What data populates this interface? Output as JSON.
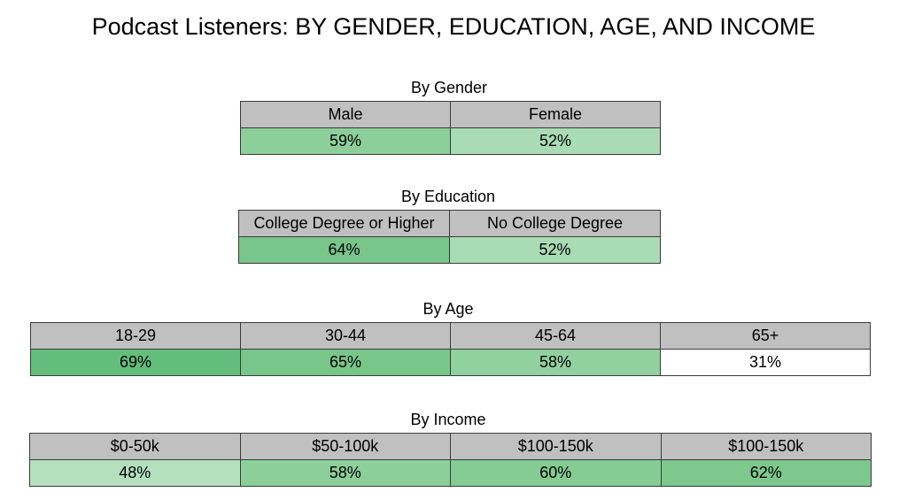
{
  "title": "Podcast Listeners: BY GENDER, EDUCATION, AGE, AND INCOME",
  "chart_data": [
    {
      "type": "table",
      "title": "By Gender",
      "categories": [
        "Male",
        "Female"
      ],
      "values": [
        59,
        52
      ],
      "labels": [
        "59%",
        "52%"
      ],
      "colors": [
        "#8ccf9a",
        "#a9dcb4"
      ]
    },
    {
      "type": "table",
      "title": "By Education",
      "categories": [
        "College Degree or Higher",
        "No College Degree"
      ],
      "values": [
        64,
        52
      ],
      "labels": [
        "64%",
        "52%"
      ],
      "colors": [
        "#78c68a",
        "#a9dcb4"
      ]
    },
    {
      "type": "table",
      "title": "By Age",
      "categories": [
        "18-29",
        "30-44",
        "45-64",
        "65+"
      ],
      "values": [
        69,
        65,
        58,
        31
      ],
      "labels": [
        "69%",
        "65%",
        "58%",
        "31%"
      ],
      "colors": [
        "#63be7b",
        "#78c68a",
        "#90d19f",
        "#ffffff"
      ]
    },
    {
      "type": "table",
      "title": "By Income",
      "categories": [
        "$0-50k",
        "$50-100k",
        "$100-150k",
        "$100-150k"
      ],
      "values": [
        48,
        58,
        60,
        62
      ],
      "labels": [
        "48%",
        "58%",
        "60%",
        "62%"
      ],
      "colors": [
        "#b5e0bf",
        "#8ccf9a",
        "#84cc94",
        "#7cc88d"
      ]
    }
  ]
}
